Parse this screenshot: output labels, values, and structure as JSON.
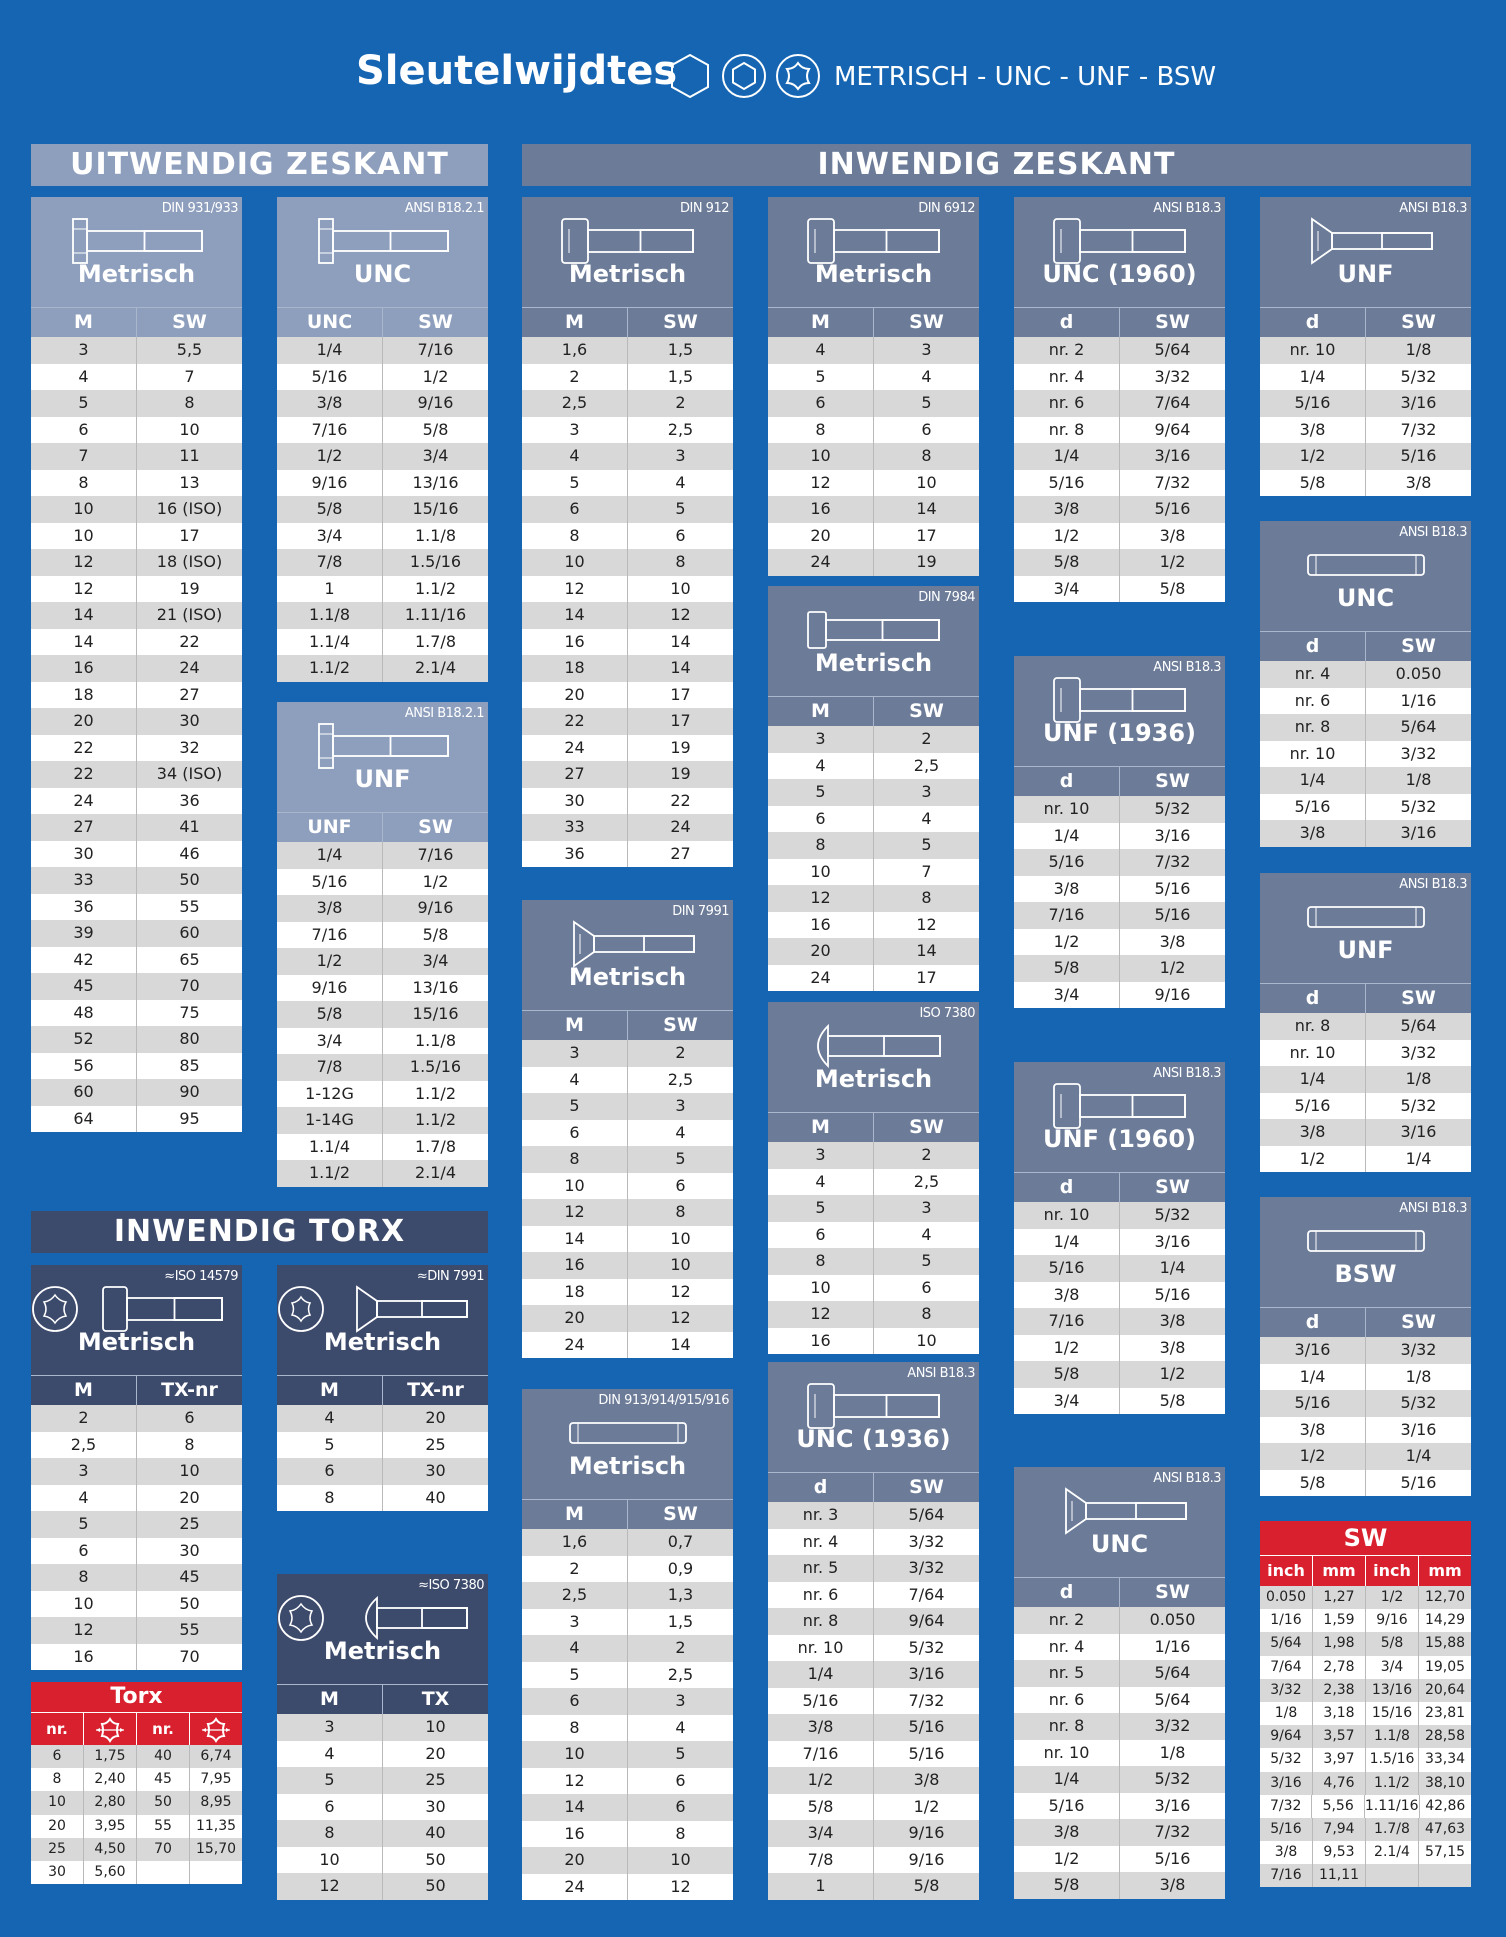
{
  "header": {
    "title": "Sleutelwijdtes",
    "subtitle": "METRISCH - UNC - UNF - BSW"
  },
  "sections": {
    "uitwendig": "UITWENDIG ZESKANT",
    "inwendig": "INWENDIG ZESKANT",
    "torx": "INWENDIG TORX"
  },
  "tables": [
    {
      "std": "DIN 931/933",
      "title": "Metrisch",
      "cols": [
        "M",
        "SW"
      ],
      "rows": [
        [
          "3",
          "5,5"
        ],
        [
          "4",
          "7"
        ],
        [
          "5",
          "8"
        ],
        [
          "6",
          "10"
        ],
        [
          "7",
          "11"
        ],
        [
          "8",
          "13"
        ],
        [
          "10",
          "16 (ISO)"
        ],
        [
          "10",
          "17"
        ],
        [
          "12",
          "18 (ISO)"
        ],
        [
          "12",
          "19"
        ],
        [
          "14",
          "21 (ISO)"
        ],
        [
          "14",
          "22"
        ],
        [
          "16",
          "24"
        ],
        [
          "18",
          "27"
        ],
        [
          "20",
          "30"
        ],
        [
          "22",
          "32"
        ],
        [
          "22",
          "34 (ISO)"
        ],
        [
          "24",
          "36"
        ],
        [
          "27",
          "41"
        ],
        [
          "30",
          "46"
        ],
        [
          "33",
          "50"
        ],
        [
          "36",
          "55"
        ],
        [
          "39",
          "60"
        ],
        [
          "42",
          "65"
        ],
        [
          "45",
          "70"
        ],
        [
          "48",
          "75"
        ],
        [
          "52",
          "80"
        ],
        [
          "56",
          "85"
        ],
        [
          "60",
          "90"
        ],
        [
          "64",
          "95"
        ]
      ]
    },
    {
      "std": "ANSI B18.2.1",
      "title": "UNC",
      "cols": [
        "UNC",
        "SW"
      ],
      "rows": [
        [
          "1/4",
          "7/16"
        ],
        [
          "5/16",
          "1/2"
        ],
        [
          "3/8",
          "9/16"
        ],
        [
          "7/16",
          "5/8"
        ],
        [
          "1/2",
          "3/4"
        ],
        [
          "9/16",
          "13/16"
        ],
        [
          "5/8",
          "15/16"
        ],
        [
          "3/4",
          "1.1/8"
        ],
        [
          "7/8",
          "1.5/16"
        ],
        [
          "1",
          "1.1/2"
        ],
        [
          "1.1/8",
          "1.11/16"
        ],
        [
          "1.1/4",
          "1.7/8"
        ],
        [
          "1.1/2",
          "2.1/4"
        ]
      ]
    },
    {
      "std": "ANSI B18.2.1",
      "title": "UNF",
      "cols": [
        "UNF",
        "SW"
      ],
      "rows": [
        [
          "1/4",
          "7/16"
        ],
        [
          "5/16",
          "1/2"
        ],
        [
          "3/8",
          "9/16"
        ],
        [
          "7/16",
          "5/8"
        ],
        [
          "1/2",
          "3/4"
        ],
        [
          "9/16",
          "13/16"
        ],
        [
          "5/8",
          "15/16"
        ],
        [
          "3/4",
          "1.1/8"
        ],
        [
          "7/8",
          "1.5/16"
        ],
        [
          "1-12G",
          "1.1/2"
        ],
        [
          "1-14G",
          "1.1/2"
        ],
        [
          "1.1/4",
          "1.7/8"
        ],
        [
          "1.1/2",
          "2.1/4"
        ]
      ]
    },
    {
      "std": "DIN 912",
      "title": "Metrisch",
      "cols": [
        "M",
        "SW"
      ],
      "rows": [
        [
          "1,6",
          "1,5"
        ],
        [
          "2",
          "1,5"
        ],
        [
          "2,5",
          "2"
        ],
        [
          "3",
          "2,5"
        ],
        [
          "4",
          "3"
        ],
        [
          "5",
          "4"
        ],
        [
          "6",
          "5"
        ],
        [
          "8",
          "6"
        ],
        [
          "10",
          "8"
        ],
        [
          "12",
          "10"
        ],
        [
          "14",
          "12"
        ],
        [
          "16",
          "14"
        ],
        [
          "18",
          "14"
        ],
        [
          "20",
          "17"
        ],
        [
          "22",
          "17"
        ],
        [
          "24",
          "19"
        ],
        [
          "27",
          "19"
        ],
        [
          "30",
          "22"
        ],
        [
          "33",
          "24"
        ],
        [
          "36",
          "27"
        ]
      ]
    },
    {
      "std": "DIN 7991",
      "title": "Metrisch",
      "cols": [
        "M",
        "SW"
      ],
      "rows": [
        [
          "3",
          "2"
        ],
        [
          "4",
          "2,5"
        ],
        [
          "5",
          "3"
        ],
        [
          "6",
          "4"
        ],
        [
          "8",
          "5"
        ],
        [
          "10",
          "6"
        ],
        [
          "12",
          "8"
        ],
        [
          "14",
          "10"
        ],
        [
          "16",
          "10"
        ],
        [
          "18",
          "12"
        ],
        [
          "20",
          "12"
        ],
        [
          "24",
          "14"
        ]
      ]
    },
    {
      "std": "DIN 913/914/915/916",
      "title": "Metrisch",
      "cols": [
        "M",
        "SW"
      ],
      "rows": [
        [
          "1,6",
          "0,7"
        ],
        [
          "2",
          "0,9"
        ],
        [
          "2,5",
          "1,3"
        ],
        [
          "3",
          "1,5"
        ],
        [
          "4",
          "2"
        ],
        [
          "5",
          "2,5"
        ],
        [
          "6",
          "3"
        ],
        [
          "8",
          "4"
        ],
        [
          "10",
          "5"
        ],
        [
          "12",
          "6"
        ],
        [
          "14",
          "6"
        ],
        [
          "16",
          "8"
        ],
        [
          "20",
          "10"
        ],
        [
          "24",
          "12"
        ]
      ]
    },
    {
      "std": "DIN 6912",
      "title": "Metrisch",
      "cols": [
        "M",
        "SW"
      ],
      "rows": [
        [
          "4",
          "3"
        ],
        [
          "5",
          "4"
        ],
        [
          "6",
          "5"
        ],
        [
          "8",
          "6"
        ],
        [
          "10",
          "8"
        ],
        [
          "12",
          "10"
        ],
        [
          "16",
          "14"
        ],
        [
          "20",
          "17"
        ],
        [
          "24",
          "19"
        ]
      ]
    },
    {
      "std": "DIN 7984",
      "title": "Metrisch",
      "cols": [
        "M",
        "SW"
      ],
      "rows": [
        [
          "3",
          "2"
        ],
        [
          "4",
          "2,5"
        ],
        [
          "5",
          "3"
        ],
        [
          "6",
          "4"
        ],
        [
          "8",
          "5"
        ],
        [
          "10",
          "7"
        ],
        [
          "12",
          "8"
        ],
        [
          "16",
          "12"
        ],
        [
          "20",
          "14"
        ],
        [
          "24",
          "17"
        ]
      ]
    },
    {
      "std": "ISO 7380",
      "title": "Metrisch",
      "cols": [
        "M",
        "SW"
      ],
      "rows": [
        [
          "3",
          "2"
        ],
        [
          "4",
          "2,5"
        ],
        [
          "5",
          "3"
        ],
        [
          "6",
          "4"
        ],
        [
          "8",
          "5"
        ],
        [
          "10",
          "6"
        ],
        [
          "12",
          "8"
        ],
        [
          "16",
          "10"
        ]
      ]
    },
    {
      "std": "ANSI B18.3",
      "title": "UNC (1936)",
      "cols": [
        "d",
        "SW"
      ],
      "rows": [
        [
          "nr. 3",
          "5/64"
        ],
        [
          "nr. 4",
          "3/32"
        ],
        [
          "nr. 5",
          "3/32"
        ],
        [
          "nr. 6",
          "7/64"
        ],
        [
          "nr. 8",
          "9/64"
        ],
        [
          "nr. 10",
          "5/32"
        ],
        [
          "1/4",
          "3/16"
        ],
        [
          "5/16",
          "7/32"
        ],
        [
          "3/8",
          "5/16"
        ],
        [
          "7/16",
          "5/16"
        ],
        [
          "1/2",
          "3/8"
        ],
        [
          "5/8",
          "1/2"
        ],
        [
          "3/4",
          "9/16"
        ],
        [
          "7/8",
          "9/16"
        ],
        [
          "1",
          "5/8"
        ]
      ]
    },
    {
      "std": "ANSI B18.3",
      "title": "UNC (1960)",
      "cols": [
        "d",
        "SW"
      ],
      "rows": [
        [
          "nr. 2",
          "5/64"
        ],
        [
          "nr. 4",
          "3/32"
        ],
        [
          "nr. 6",
          "7/64"
        ],
        [
          "nr. 8",
          "9/64"
        ],
        [
          "1/4",
          "3/16"
        ],
        [
          "5/16",
          "7/32"
        ],
        [
          "3/8",
          "5/16"
        ],
        [
          "1/2",
          "3/8"
        ],
        [
          "5/8",
          "1/2"
        ],
        [
          "3/4",
          "5/8"
        ]
      ]
    },
    {
      "std": "ANSI B18.3",
      "title": "UNF (1936)",
      "cols": [
        "d",
        "SW"
      ],
      "rows": [
        [
          "nr. 10",
          "5/32"
        ],
        [
          "1/4",
          "3/16"
        ],
        [
          "5/16",
          "7/32"
        ],
        [
          "3/8",
          "5/16"
        ],
        [
          "7/16",
          "5/16"
        ],
        [
          "1/2",
          "3/8"
        ],
        [
          "5/8",
          "1/2"
        ],
        [
          "3/4",
          "9/16"
        ]
      ]
    },
    {
      "std": "ANSI B18.3",
      "title": "UNF (1960)",
      "cols": [
        "d",
        "SW"
      ],
      "rows": [
        [
          "nr. 10",
          "5/32"
        ],
        [
          "1/4",
          "3/16"
        ],
        [
          "5/16",
          "1/4"
        ],
        [
          "3/8",
          "5/16"
        ],
        [
          "7/16",
          "3/8"
        ],
        [
          "1/2",
          "3/8"
        ],
        [
          "5/8",
          "1/2"
        ],
        [
          "3/4",
          "5/8"
        ]
      ]
    },
    {
      "std": "ANSI B18.3",
      "title": "UNC",
      "cols": [
        "d",
        "SW"
      ],
      "rows": [
        [
          "nr. 2",
          "0.050"
        ],
        [
          "nr. 4",
          "1/16"
        ],
        [
          "nr. 5",
          "5/64"
        ],
        [
          "nr. 6",
          "5/64"
        ],
        [
          "nr. 8",
          "3/32"
        ],
        [
          "nr. 10",
          "1/8"
        ],
        [
          "1/4",
          "5/32"
        ],
        [
          "5/16",
          "3/16"
        ],
        [
          "3/8",
          "7/32"
        ],
        [
          "1/2",
          "5/16"
        ],
        [
          "5/8",
          "3/8"
        ]
      ]
    },
    {
      "std": "ANSI B18.3",
      "title": "UNF",
      "cols": [
        "d",
        "SW"
      ],
      "rows": [
        [
          "nr. 10",
          "1/8"
        ],
        [
          "1/4",
          "5/32"
        ],
        [
          "5/16",
          "3/16"
        ],
        [
          "3/8",
          "7/32"
        ],
        [
          "1/2",
          "5/16"
        ],
        [
          "5/8",
          "3/8"
        ]
      ]
    },
    {
      "std": "ANSI B18.3",
      "title": "UNC",
      "cols": [
        "d",
        "SW"
      ],
      "rows": [
        [
          "nr. 4",
          "0.050"
        ],
        [
          "nr. 6",
          "1/16"
        ],
        [
          "nr. 8",
          "5/64"
        ],
        [
          "nr. 10",
          "3/32"
        ],
        [
          "1/4",
          "1/8"
        ],
        [
          "5/16",
          "5/32"
        ],
        [
          "3/8",
          "3/16"
        ]
      ]
    },
    {
      "std": "ANSI B18.3",
      "title": "UNF",
      "cols": [
        "d",
        "SW"
      ],
      "rows": [
        [
          "nr. 8",
          "5/64"
        ],
        [
          "nr. 10",
          "3/32"
        ],
        [
          "1/4",
          "1/8"
        ],
        [
          "5/16",
          "5/32"
        ],
        [
          "3/8",
          "3/16"
        ],
        [
          "1/2",
          "1/4"
        ]
      ]
    },
    {
      "std": "ANSI B18.3",
      "title": "BSW",
      "cols": [
        "d",
        "SW"
      ],
      "rows": [
        [
          "3/16",
          "3/32"
        ],
        [
          "1/4",
          "1/8"
        ],
        [
          "5/16",
          "5/32"
        ],
        [
          "3/8",
          "3/16"
        ],
        [
          "1/2",
          "1/4"
        ],
        [
          "5/8",
          "5/16"
        ]
      ]
    },
    {
      "std": "≈ISO 14579",
      "title": "Metrisch",
      "cols": [
        "M",
        "TX-nr"
      ],
      "rows": [
        [
          "2",
          "6"
        ],
        [
          "2,5",
          "8"
        ],
        [
          "3",
          "10"
        ],
        [
          "4",
          "20"
        ],
        [
          "5",
          "25"
        ],
        [
          "6",
          "30"
        ],
        [
          "8",
          "45"
        ],
        [
          "10",
          "50"
        ],
        [
          "12",
          "55"
        ],
        [
          "16",
          "70"
        ]
      ]
    },
    {
      "std": "≈DIN 7991",
      "title": "Metrisch",
      "cols": [
        "M",
        "TX-nr"
      ],
      "rows": [
        [
          "4",
          "20"
        ],
        [
          "5",
          "25"
        ],
        [
          "6",
          "30"
        ],
        [
          "8",
          "40"
        ]
      ]
    },
    {
      "std": "≈ISO 7380",
      "title": "Metrisch",
      "cols": [
        "M",
        "TX"
      ],
      "rows": [
        [
          "3",
          "10"
        ],
        [
          "4",
          "20"
        ],
        [
          "5",
          "25"
        ],
        [
          "6",
          "30"
        ],
        [
          "8",
          "40"
        ],
        [
          "10",
          "50"
        ],
        [
          "12",
          "50"
        ]
      ]
    }
  ],
  "torx_ref": {
    "title": "Torx",
    "cols": [
      "nr.",
      "nr."
    ],
    "rows": [
      [
        "6",
        "1,75",
        "40",
        "6,74"
      ],
      [
        "8",
        "2,40",
        "45",
        "7,95"
      ],
      [
        "10",
        "2,80",
        "50",
        "8,95"
      ],
      [
        "20",
        "3,95",
        "55",
        "11,35"
      ],
      [
        "25",
        "4,50",
        "70",
        "15,70"
      ],
      [
        "30",
        "5,60",
        "",
        ""
      ]
    ]
  },
  "sw_ref": {
    "title": "SW",
    "cols": [
      "inch",
      "mm",
      "inch",
      "mm"
    ],
    "rows": [
      [
        "0.050",
        "1,27",
        "1/2",
        "12,70"
      ],
      [
        "1/16",
        "1,59",
        "9/16",
        "14,29"
      ],
      [
        "5/64",
        "1,98",
        "5/8",
        "15,88"
      ],
      [
        "7/64",
        "2,78",
        "3/4",
        "19,05"
      ],
      [
        "3/32",
        "2,38",
        "13/16",
        "20,64"
      ],
      [
        "1/8",
        "3,18",
        "15/16",
        "23,81"
      ],
      [
        "9/64",
        "3,57",
        "1.1/8",
        "28,58"
      ],
      [
        "5/32",
        "3,97",
        "1.5/16",
        "33,34"
      ],
      [
        "3/16",
        "4,76",
        "1.1/2",
        "38,10"
      ],
      [
        "7/32",
        "5,56",
        "1.11/16",
        "42,86"
      ],
      [
        "5/16",
        "7,94",
        "1.7/8",
        "47,63"
      ],
      [
        "3/8",
        "9,53",
        "2.1/4",
        "57,15"
      ],
      [
        "7/16",
        "11,11",
        "",
        ""
      ]
    ]
  }
}
